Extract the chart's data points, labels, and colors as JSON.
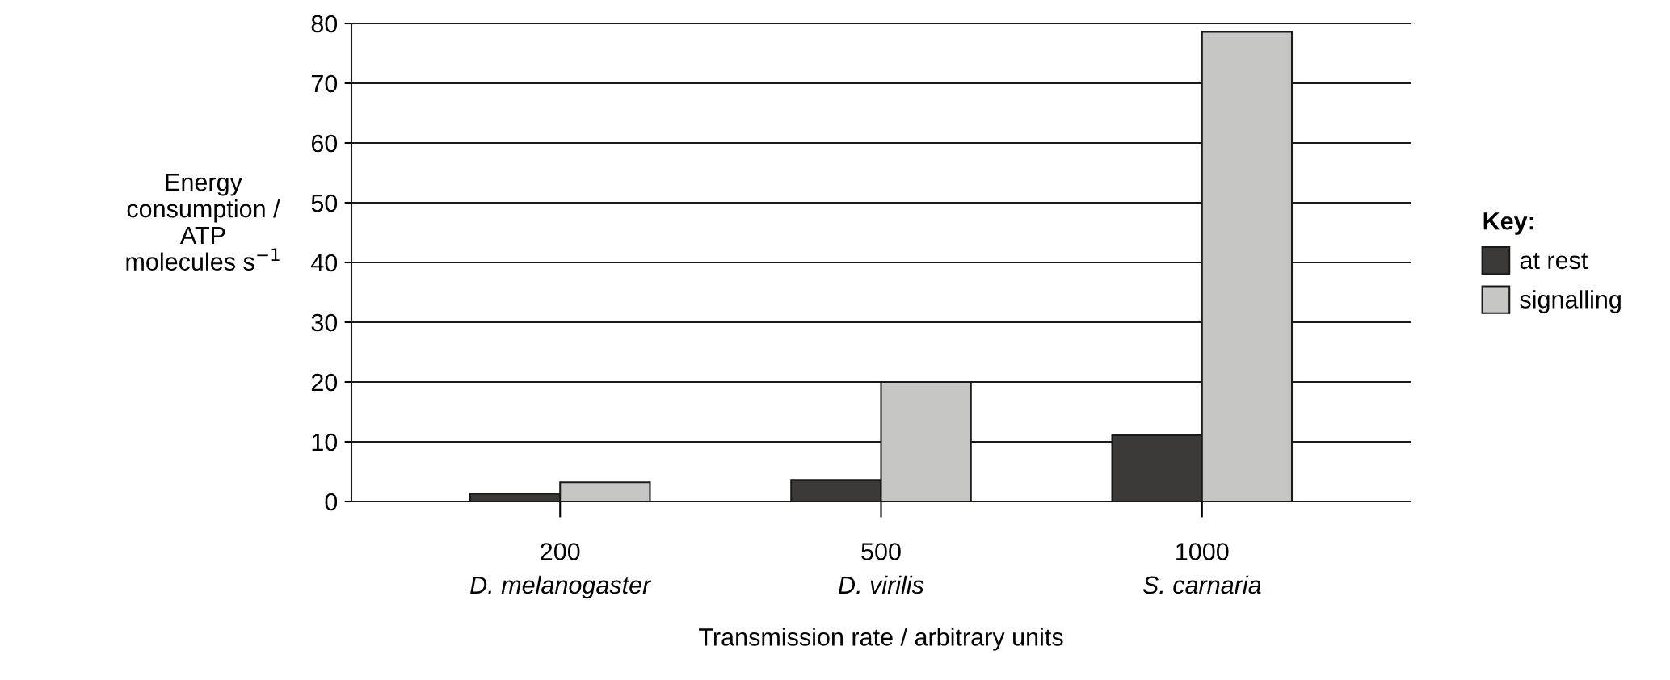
{
  "chart_data": {
    "type": "bar",
    "xlabel": "Transmission rate / arbitrary units",
    "ylabel": "Energy\nconsumption /\nATP\nmolecules s$^{−1}$",
    "legend_title": "Key:",
    "categories": [
      "200\nD. melanogaster",
      "500\nD. virilis",
      "1000\nS. carnaria"
    ],
    "series": [
      {
        "name": "at rest",
        "color": "#3b3a38",
        "values": [
          1.3,
          3.6,
          11.1
        ]
      },
      {
        "name": "signalling",
        "color": "#c6c6c5",
        "values": [
          3.2,
          20,
          78.6
        ]
      }
    ],
    "ylim": [
      0,
      80
    ],
    "yticks": [
      0,
      10,
      20,
      30,
      40,
      50,
      60,
      70,
      80
    ],
    "grid": "y",
    "legend": "right"
  }
}
